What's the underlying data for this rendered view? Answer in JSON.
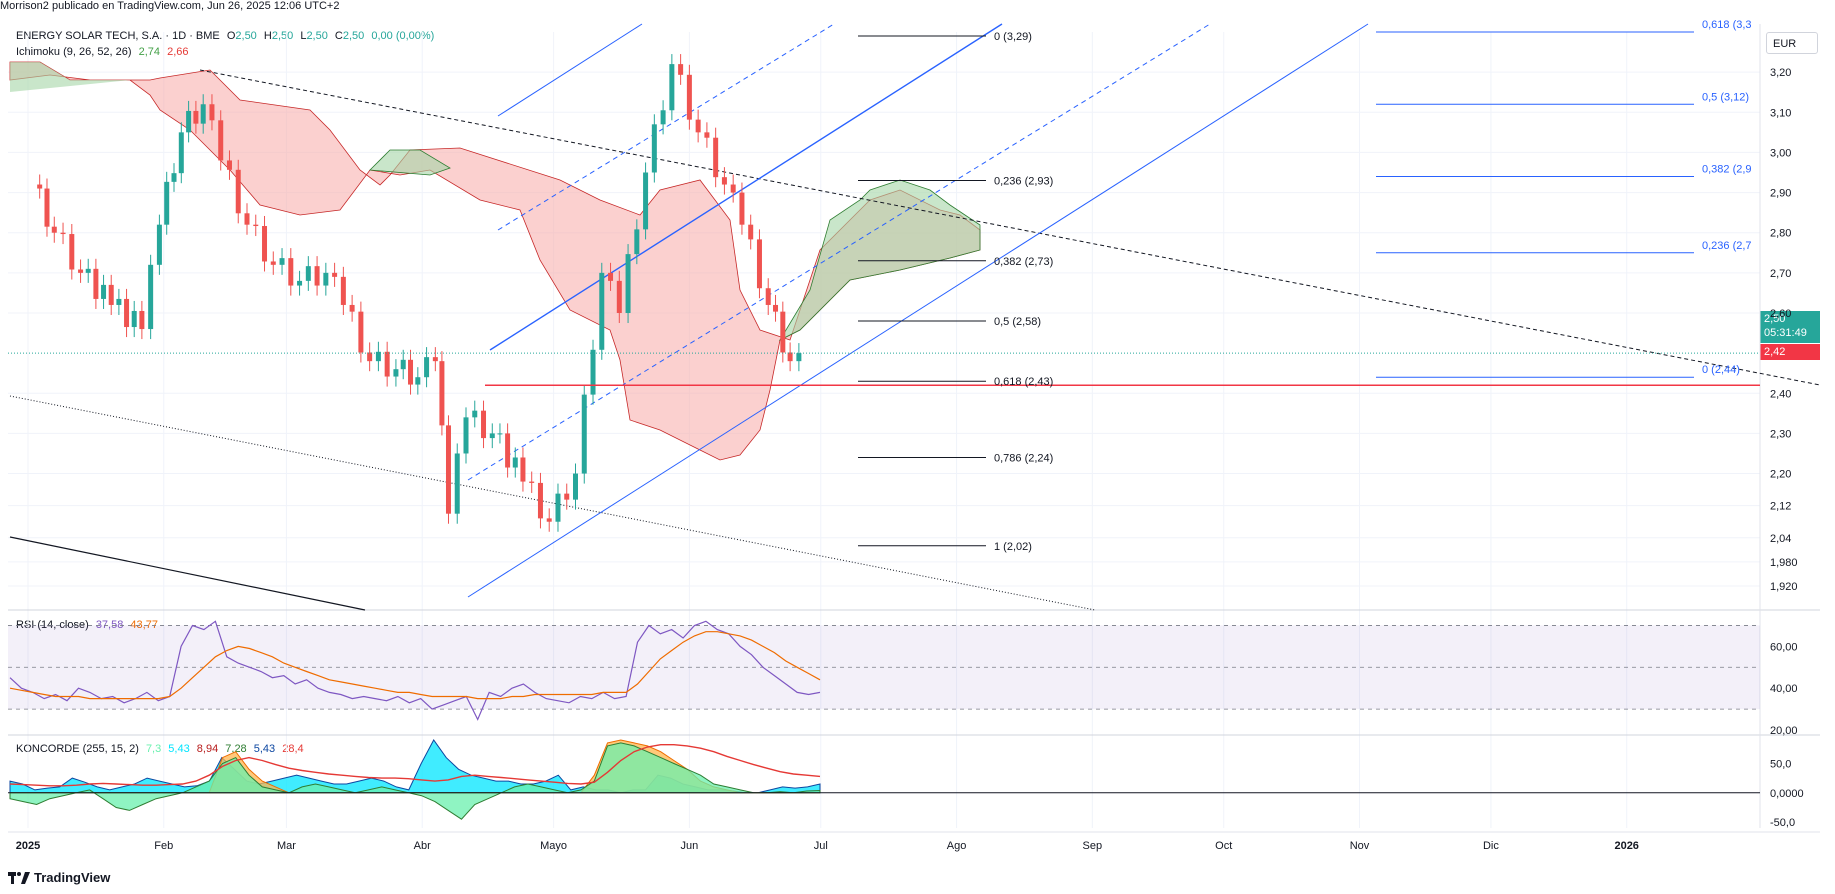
{
  "header": "Morrison2 publicado en TradingView.com, Jun 26, 2025 12:06 UTC+2",
  "symbol_legend": {
    "name": "ENERGY SOLAR TECH, S.A. · 1D · BME",
    "o_label": "O",
    "o": "2,50",
    "h_label": "H",
    "h": "2,50",
    "l_label": "L",
    "l": "2,50",
    "c_label": "C",
    "c": "2,50",
    "change": "0,00 (0,00%)"
  },
  "ichimoku_legend": {
    "name": "Ichimoku (9, 26, 52, 26)",
    "v1": "2,74",
    "v2": "2,66"
  },
  "rsi_legend": {
    "name": "RSI (14, close)",
    "v1": "37,58",
    "v2": "43,77"
  },
  "koncorde_legend": {
    "name": "KONCORDE (255, 15, 2)",
    "v1": "7,3",
    "v2": "5,43",
    "v3": "8,94",
    "v4": "7,28",
    "v5": "5,43",
    "v6": "28,4"
  },
  "currency": "EUR",
  "last_price": "2,50",
  "countdown": "05:31:49",
  "line_price": "2,42",
  "logo_text": "TradingView",
  "colors": {
    "up": "#26a69a",
    "down": "#ef5350",
    "blue": "#2962ff",
    "cloud_green": "#a5d6a7",
    "cloud_red": "#f7a9a7",
    "rsi": "#7e57c2",
    "rsi_ma": "#ef6c00",
    "redline": "#f23645",
    "koncorde_cyan": "#00e5ff",
    "koncorde_green": "#69f0ae",
    "koncorde_orange": "#ffb74d"
  },
  "chart_data": [
    {
      "type": "candlestick",
      "title": "ENERGY SOLAR TECH, S.A. · 1D · BME",
      "x_ticks": [
        "2025",
        "Feb",
        "Mar",
        "Abr",
        "Mayo",
        "Jun",
        "Jul",
        "Ago",
        "Sep",
        "Oct",
        "Nov",
        "Dic",
        "2026"
      ],
      "y_ticks": [
        "3,20",
        "3,10",
        "3,00",
        "2,90",
        "2,80",
        "2,70",
        "2,60",
        "2,40",
        "2,30",
        "2,20",
        "2,12",
        "2,04",
        "1,980",
        "1,920"
      ],
      "ylim": [
        1.88,
        3.3
      ],
      "series": [
        {
          "name": "Close (approx)",
          "dates": [
            "2025-01-02",
            "2025-01-07",
            "2025-01-13",
            "2025-01-20",
            "2025-01-27",
            "2025-01-31",
            "2025-02-05",
            "2025-02-10",
            "2025-02-14",
            "2025-02-20",
            "2025-02-26",
            "2025-03-04",
            "2025-03-10",
            "2025-03-14",
            "2025-03-20",
            "2025-03-26",
            "2025-03-31",
            "2025-04-04",
            "2025-04-07",
            "2025-04-11",
            "2025-04-17",
            "2025-04-24",
            "2025-04-30",
            "2025-05-06",
            "2025-05-12",
            "2025-05-16",
            "2025-05-22",
            "2025-05-28",
            "2025-06-03",
            "2025-06-09",
            "2025-06-13",
            "2025-06-19",
            "2025-06-24",
            "2025-06-26"
          ],
          "values": [
            2.92,
            2.8,
            2.7,
            2.62,
            2.56,
            2.82,
            3.05,
            3.12,
            2.98,
            2.82,
            2.72,
            2.68,
            2.7,
            2.62,
            2.48,
            2.46,
            2.44,
            2.48,
            2.1,
            2.34,
            2.3,
            2.18,
            2.08,
            2.2,
            2.7,
            2.6,
            2.95,
            3.22,
            3.05,
            2.92,
            2.82,
            2.62,
            2.48,
            2.5
          ]
        }
      ],
      "fib_levels_left": [
        {
          "label": "0 (3,29)",
          "value": 3.29
        },
        {
          "label": "0,236 (2,93)",
          "value": 2.93
        },
        {
          "label": "0,382 (2,73)",
          "value": 2.73
        },
        {
          "label": "0,5 (2,58)",
          "value": 2.58
        },
        {
          "label": "0,618 (2,43)",
          "value": 2.43
        },
        {
          "label": "0,786 (2,24)",
          "value": 2.24
        },
        {
          "label": "1 (2,02)",
          "value": 2.02
        }
      ],
      "fib_levels_right": [
        {
          "label": "0,618 (3,3",
          "value": 3.3
        },
        {
          "label": "0,5 (3,12)",
          "value": 3.12
        },
        {
          "label": "0,382 (2,9",
          "value": 2.94
        },
        {
          "label": "0,236 (2,7",
          "value": 2.75
        },
        {
          "label": "0 (2,44)",
          "value": 2.44
        }
      ],
      "last": 2.5,
      "support": 2.42
    },
    {
      "type": "line",
      "title": "RSI (14, close)",
      "y_ticks": [
        "60,00",
        "40,00",
        "20,00"
      ],
      "ylim": [
        20,
        75
      ],
      "bands": [
        70,
        50,
        30
      ],
      "series": [
        {
          "name": "RSI",
          "values": [
            45,
            40,
            38,
            35,
            37,
            34,
            40,
            38,
            35,
            36,
            33,
            35,
            38,
            34,
            36,
            60,
            70,
            68,
            72,
            55,
            52,
            50,
            48,
            45,
            46,
            42,
            44,
            40,
            38,
            37,
            35,
            36,
            35,
            34,
            36,
            33,
            35,
            30,
            32,
            34,
            36,
            25,
            38,
            36,
            40,
            42,
            38,
            35,
            34,
            33,
            36,
            35,
            38,
            35,
            36,
            62,
            70,
            66,
            68,
            64,
            70,
            72,
            68,
            66,
            60,
            56,
            50,
            46,
            42,
            38,
            37,
            38
          ]
        },
        {
          "name": "MA",
          "values": [
            40,
            39,
            38,
            37,
            36,
            36,
            36,
            35,
            35,
            35,
            35,
            35,
            35,
            35,
            36,
            40,
            45,
            50,
            55,
            58,
            60,
            59,
            57,
            55,
            52,
            50,
            48,
            46,
            44,
            43,
            42,
            41,
            40,
            39,
            38,
            38,
            37,
            36,
            36,
            36,
            36,
            35,
            35,
            35,
            36,
            36,
            37,
            37,
            37,
            37,
            37,
            37,
            38,
            38,
            38,
            42,
            48,
            54,
            58,
            62,
            65,
            67,
            67,
            66,
            65,
            63,
            60,
            57,
            53,
            50,
            47,
            44
          ]
        }
      ]
    },
    {
      "type": "area",
      "title": "KONCORDE (255, 15, 2)",
      "y_ticks": [
        "50,0",
        "0,0000",
        "-50,0"
      ],
      "ylim": [
        -60,
        90
      ],
      "series": [
        {
          "name": "cyan",
          "values": [
            20,
            15,
            5,
            8,
            10,
            25,
            18,
            10,
            5,
            10,
            15,
            25,
            20,
            15,
            10,
            12,
            20,
            60,
            40,
            20,
            15,
            20,
            25,
            30,
            25,
            20,
            15,
            15,
            20,
            25,
            20,
            10,
            5,
            50,
            90,
            60,
            40,
            30,
            25,
            20,
            20,
            15,
            15,
            20,
            30,
            5,
            10,
            5,
            5,
            0,
            5,
            5,
            30,
            25,
            15,
            10,
            5,
            5,
            3,
            0,
            0,
            5,
            10,
            8,
            10,
            15
          ]
        },
        {
          "name": "green",
          "values": [
            -10,
            -15,
            -20,
            -10,
            -5,
            0,
            5,
            -10,
            -25,
            -30,
            -20,
            -10,
            -5,
            0,
            10,
            20,
            50,
            60,
            30,
            10,
            5,
            0,
            10,
            15,
            10,
            5,
            0,
            5,
            10,
            5,
            0,
            -5,
            -15,
            -30,
            -45,
            -20,
            -10,
            0,
            10,
            15,
            10,
            5,
            0,
            5,
            20,
            80,
            85,
            80,
            70,
            60,
            50,
            40,
            30,
            15,
            10,
            5,
            0,
            0,
            2,
            0,
            3,
            4
          ]
        },
        {
          "name": "orange",
          "values": [
            0,
            0,
            0,
            0,
            0,
            0,
            0,
            0,
            0,
            0,
            0,
            0,
            0,
            0,
            0,
            0,
            60,
            70,
            40,
            20,
            10,
            0,
            0,
            0,
            0,
            0,
            0,
            0,
            0,
            0,
            0,
            0,
            0,
            0,
            0,
            0,
            0,
            0,
            0,
            0,
            0,
            0,
            0,
            0,
            30,
            85,
            90,
            85,
            80,
            70,
            55,
            40,
            20,
            10,
            5,
            0,
            0,
            0,
            0,
            0,
            0,
            0
          ]
        },
        {
          "name": "ma",
          "values": [
            15,
            14,
            13,
            12,
            12,
            13,
            15,
            16,
            15,
            14,
            13,
            13,
            14,
            15,
            20,
            30,
            45,
            55,
            60,
            55,
            48,
            42,
            38,
            35,
            32,
            30,
            28,
            26,
            25,
            25,
            24,
            22,
            20,
            22,
            28,
            30,
            28,
            26,
            24,
            22,
            20,
            18,
            16,
            15,
            18,
            35,
            55,
            70,
            78,
            82,
            82,
            80,
            76,
            70,
            62,
            55,
            48,
            42,
            36,
            32,
            30,
            28
          ]
        }
      ]
    }
  ]
}
